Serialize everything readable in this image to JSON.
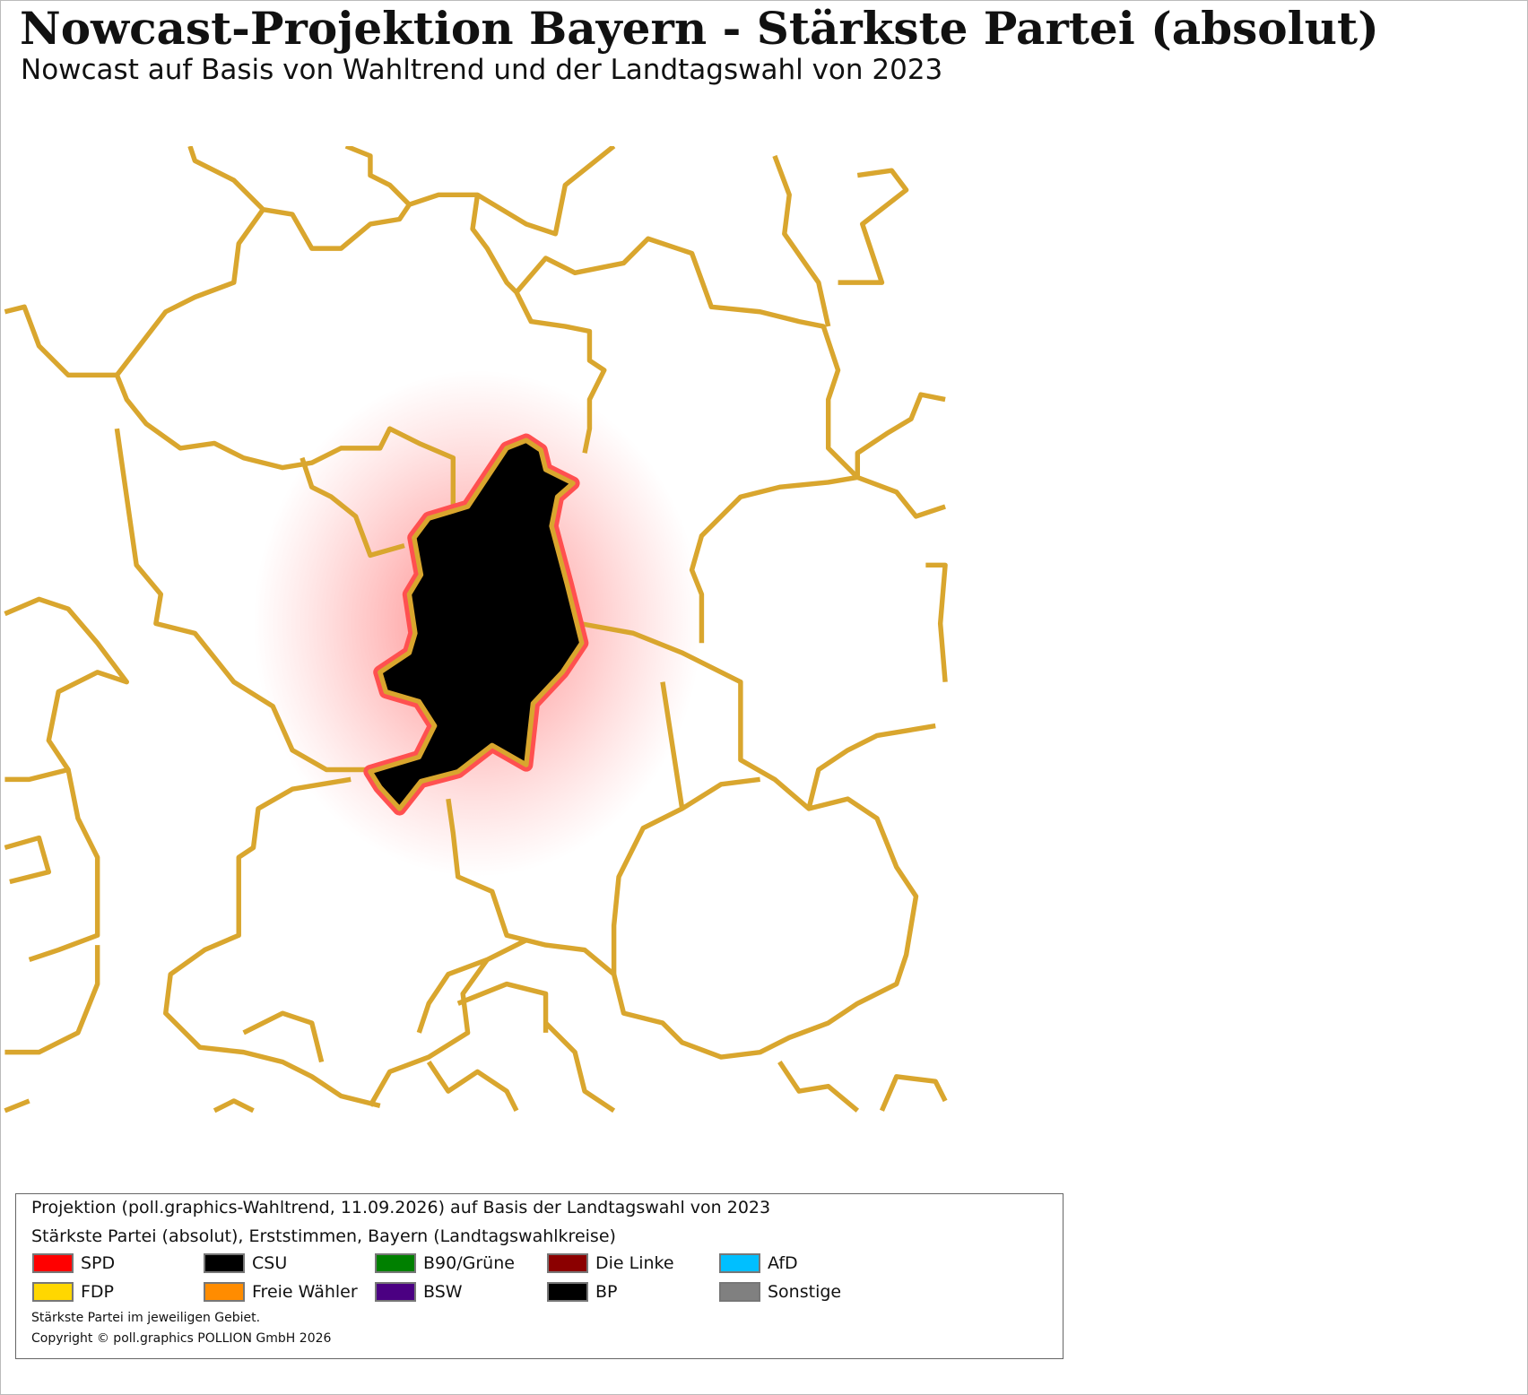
{
  "header": {
    "title": "Nowcast-Projektion Bayern - Stärkste Partei (absolut)",
    "subtitle": "Nowcast auf Basis von Wahltrend und der Landtagswahl von 2023"
  },
  "legend": {
    "lines": [
      "Projektion (poll.graphics-Wahltrend, 11.09.2026) auf Basis der Landtagswahl von 2023",
      "Stärkste Partei (absolut), Erststimmen, Bayern (Landtagswahlkreise)"
    ],
    "items": [
      {
        "label": "SPD",
        "color": "#ff0000"
      },
      {
        "label": "CSU",
        "color": "#000000"
      },
      {
        "label": "B90/Grüne",
        "color": "#008000"
      },
      {
        "label": "Die Linke",
        "color": "#8b0000"
      },
      {
        "label": "AfD",
        "color": "#00bfff"
      },
      {
        "label": "FDP",
        "color": "#ffd700"
      },
      {
        "label": "Freie Wähler",
        "color": "#ff8c00"
      },
      {
        "label": "BSW",
        "color": "#4b0082"
      },
      {
        "label": "BP",
        "color": "#000000"
      },
      {
        "label": "Sonstige",
        "color": "#808080"
      }
    ],
    "notes": [
      "Stärkste Partei im jeweiligen Gebiet.",
      "Copyright © poll.graphics POLLION GmbH 2026"
    ]
  }
}
